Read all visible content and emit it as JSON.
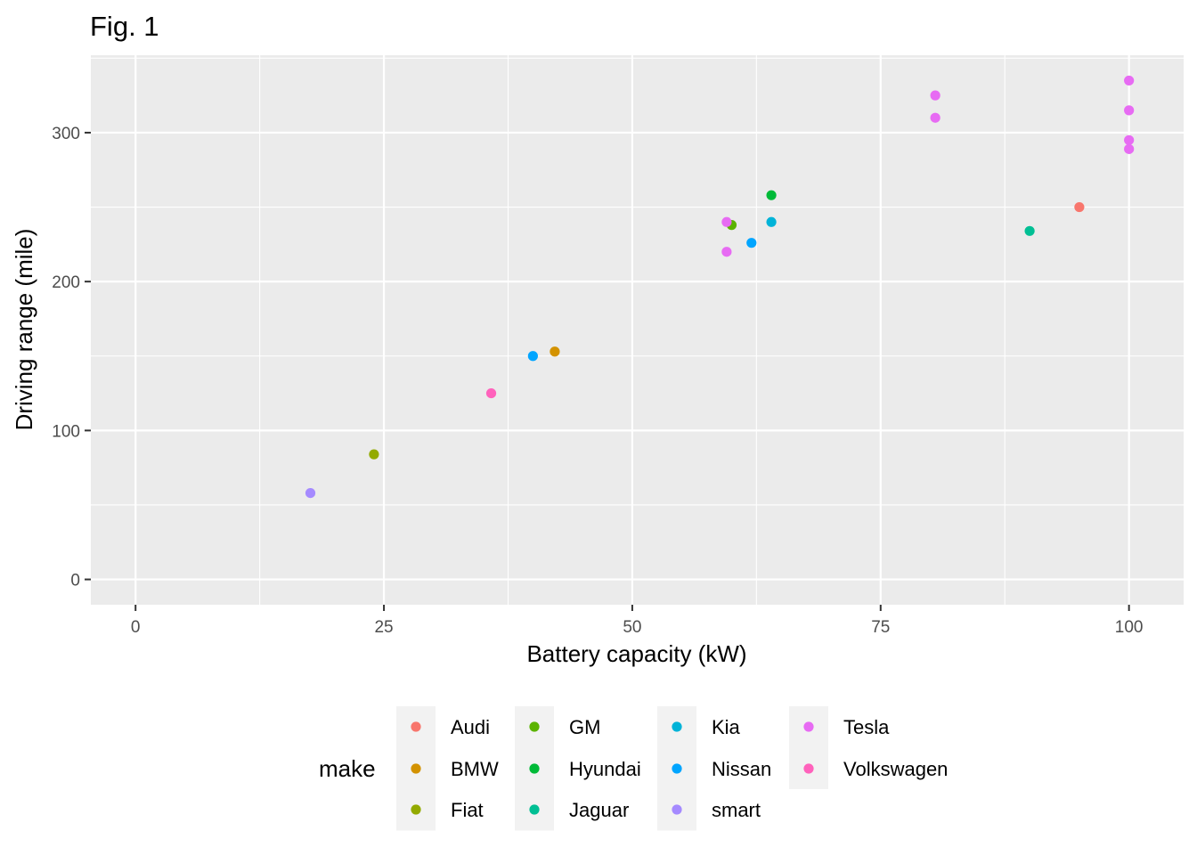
{
  "chart_data": {
    "type": "scatter",
    "title": "Fig. 1",
    "xlabel": "Battery capacity (kW)",
    "ylabel": "Driving range (mile)",
    "xlim": [
      -4.5,
      105.5
    ],
    "ylim": [
      -17,
      352
    ],
    "x_ticks": [
      0,
      25,
      50,
      75,
      100
    ],
    "y_ticks": [
      0,
      100,
      200,
      300
    ],
    "x_tick_labels": [
      "0",
      "25",
      "50",
      "75",
      "100"
    ],
    "y_tick_labels": [
      "0",
      "100",
      "200",
      "300"
    ],
    "grid": true,
    "legend": {
      "title": "make",
      "position": "bottom",
      "columns": [
        [
          "Audi",
          "BMW",
          "Fiat"
        ],
        [
          "GM",
          "Hyundai",
          "Jaguar"
        ],
        [
          "Kia",
          "Nissan",
          "smart"
        ],
        [
          "Tesla",
          "Volkswagen"
        ]
      ]
    },
    "series": [
      {
        "name": "Audi",
        "color": "#F8766D",
        "points": [
          {
            "x": 95,
            "y": 250
          }
        ]
      },
      {
        "name": "BMW",
        "color": "#D39200",
        "points": [
          {
            "x": 42.2,
            "y": 153
          }
        ]
      },
      {
        "name": "Fiat",
        "color": "#93AA00",
        "points": [
          {
            "x": 24,
            "y": 84
          }
        ]
      },
      {
        "name": "GM",
        "color": "#5BB300",
        "points": [
          {
            "x": 60,
            "y": 238
          }
        ]
      },
      {
        "name": "Hyundai",
        "color": "#00BA38",
        "points": [
          {
            "x": 64,
            "y": 258
          }
        ]
      },
      {
        "name": "Jaguar",
        "color": "#00BF94",
        "points": [
          {
            "x": 90,
            "y": 234
          }
        ]
      },
      {
        "name": "Kia",
        "color": "#00B3D8",
        "points": [
          {
            "x": 64,
            "y": 240
          }
        ]
      },
      {
        "name": "Nissan",
        "color": "#00A5FF",
        "points": [
          {
            "x": 40,
            "y": 150
          },
          {
            "x": 62,
            "y": 226
          }
        ]
      },
      {
        "name": "smart",
        "color": "#A58AFF",
        "points": [
          {
            "x": 17.6,
            "y": 58
          }
        ]
      },
      {
        "name": "Tesla",
        "color": "#E76BF3",
        "points": [
          {
            "x": 59.5,
            "y": 240
          },
          {
            "x": 59.5,
            "y": 220
          },
          {
            "x": 80.5,
            "y": 325
          },
          {
            "x": 80.5,
            "y": 310
          },
          {
            "x": 100,
            "y": 335
          },
          {
            "x": 100,
            "y": 315
          },
          {
            "x": 100,
            "y": 295
          },
          {
            "x": 100,
            "y": 289
          }
        ]
      },
      {
        "name": "Volkswagen",
        "color": "#FF62BC",
        "points": [
          {
            "x": 35.8,
            "y": 125
          }
        ]
      }
    ]
  }
}
